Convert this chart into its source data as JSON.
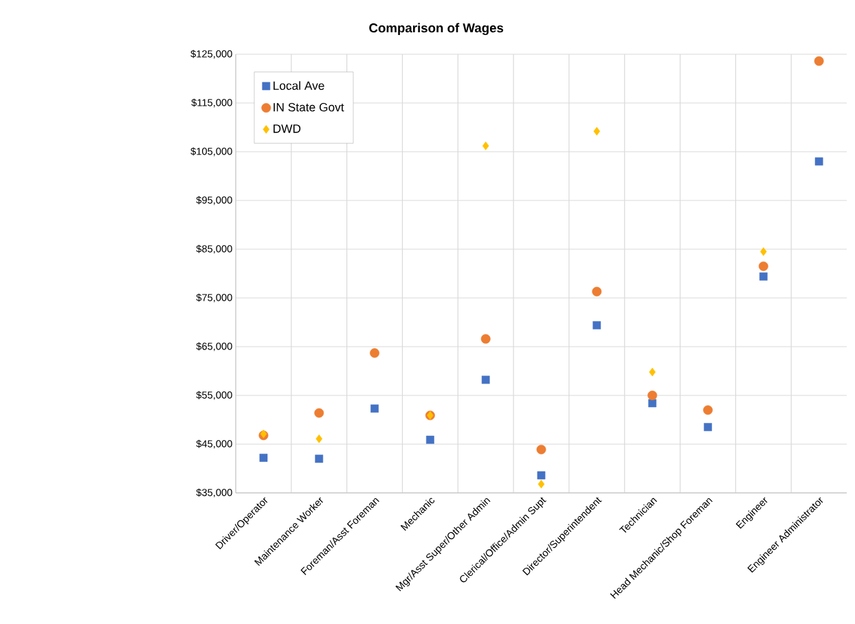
{
  "chart_data": {
    "type": "scatter",
    "title": "Comparison of Wages",
    "categories": [
      "Driver/Operator",
      "Maintenance Worker",
      "Foreman/Asst Foreman",
      "Mechanic",
      "Mgr/Asst Super/Other Admin",
      "Clerical/Office/Admin Supt",
      "Director/Superintendent",
      "Technician",
      "Head Mechanic/Shop Foreman",
      "Engineer",
      "Engineer Administrator"
    ],
    "series": [
      {
        "name": "Local Ave",
        "color": "#4472c4",
        "marker": "square",
        "values": [
          42200,
          42000,
          52300,
          45900,
          58200,
          38600,
          69400,
          53400,
          48500,
          79400,
          103000
        ]
      },
      {
        "name": "IN State Govt",
        "color": "#ed7d31",
        "marker": "circle",
        "values": [
          46800,
          51400,
          63700,
          50900,
          66600,
          43900,
          76300,
          55000,
          52000,
          81500,
          123600
        ]
      },
      {
        "name": "DWD",
        "color": "#ffc000",
        "marker": "diamond",
        "values": [
          47100,
          46100,
          null,
          50900,
          106200,
          36800,
          109200,
          59800,
          null,
          84500,
          null
        ]
      }
    ],
    "ylim": [
      35000,
      125000
    ],
    "yticks": [
      {
        "value": 35000,
        "label": "$35,000"
      },
      {
        "value": 45000,
        "label": "$45,000"
      },
      {
        "value": 55000,
        "label": "$55,000"
      },
      {
        "value": 65000,
        "label": "$65,000"
      },
      {
        "value": 75000,
        "label": "$75,000"
      },
      {
        "value": 85000,
        "label": "$85,000"
      },
      {
        "value": 95000,
        "label": "$95,000"
      },
      {
        "value": 105000,
        "label": "$105,000"
      },
      {
        "value": 115000,
        "label": "$115,000"
      },
      {
        "value": 125000,
        "label": "$125,000"
      }
    ],
    "grid": true,
    "legend": "top left"
  }
}
